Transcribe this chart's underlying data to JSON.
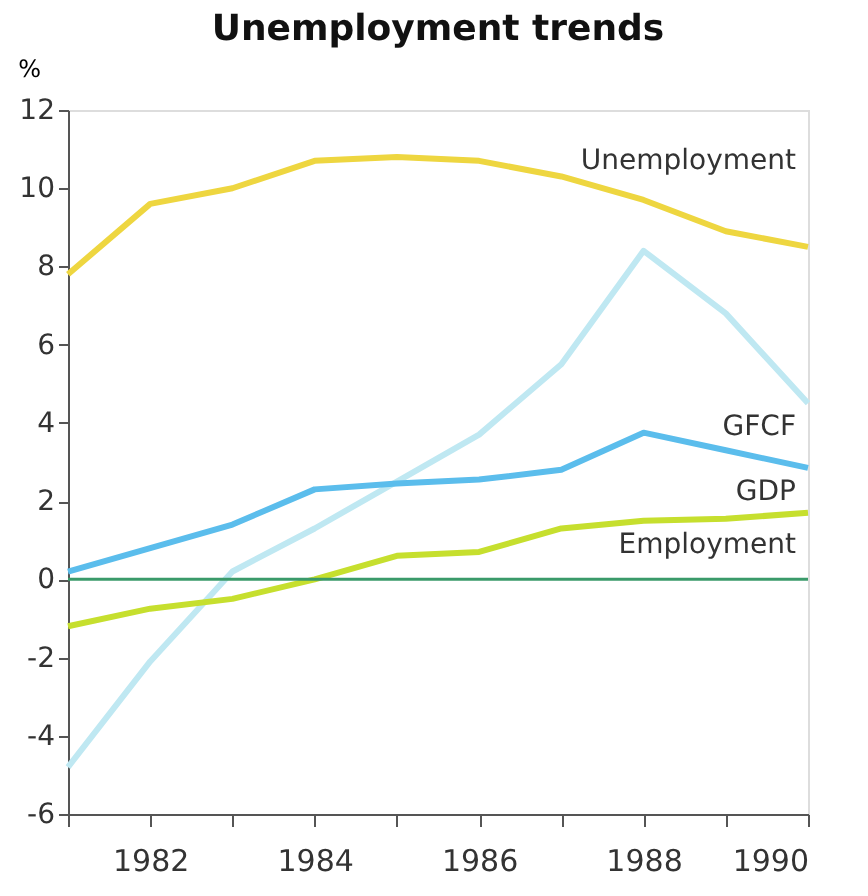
{
  "chart_data": {
    "type": "line",
    "title": "Unemployment trends",
    "ylabel": "%",
    "x": [
      1981,
      1982,
      1983,
      1984,
      1985,
      1986,
      1987,
      1988,
      1989,
      1990
    ],
    "series": [
      {
        "name": "Unemployment",
        "color": "#eed640",
        "values": [
          7.8,
          9.6,
          10.0,
          10.7,
          10.8,
          10.7,
          10.3,
          9.7,
          8.9,
          8.5
        ]
      },
      {
        "name": "GFCF",
        "color": "#bfe8f2",
        "values": [
          -4.8,
          -2.1,
          0.2,
          1.3,
          2.5,
          3.7,
          5.5,
          8.4,
          6.8,
          4.5
        ]
      },
      {
        "name": "GDP",
        "color": "#5bbdec",
        "values": [
          0.2,
          0.8,
          1.4,
          2.3,
          2.45,
          2.55,
          2.8,
          3.75,
          3.3,
          2.85
        ]
      },
      {
        "name": "Employment",
        "color": "#c6df2e",
        "values": [
          -1.2,
          -0.75,
          -0.5,
          0.0,
          0.6,
          0.7,
          1.3,
          1.5,
          1.55,
          1.7
        ]
      }
    ],
    "xlim": [
      1981,
      1990
    ],
    "xticks": [
      {
        "value": 1981,
        "label": null
      },
      1982,
      {
        "value": 1983,
        "label": null
      },
      1984,
      {
        "value": 1985,
        "label": null
      },
      1986,
      {
        "value": 1987,
        "label": null
      },
      1988,
      {
        "value": 1989,
        "label": null
      },
      1990
    ],
    "ylim": [
      -6,
      12
    ],
    "yticks": [
      -6,
      -4,
      -2,
      0,
      2,
      4,
      6,
      8,
      10,
      12
    ],
    "ref_lines": [
      {
        "axis": "y",
        "value": 0,
        "color": "#3a9a6a"
      }
    ],
    "grid": false,
    "legend": false,
    "marker": "none",
    "line_style": "solid"
  }
}
